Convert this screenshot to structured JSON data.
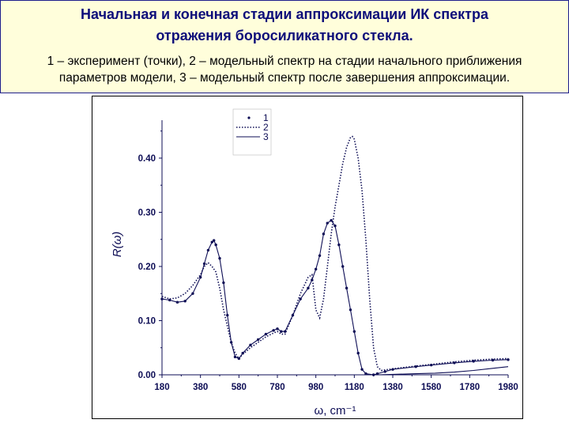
{
  "header": {
    "title_line1": "Начальная и конечная стадии аппроксимации ИК спектра",
    "title_line2": "отражения боросиликатного стекла.",
    "subtitle_line1": "1 – эксперимент (точки), 2 – модельный спектр на стадии начального приближения",
    "subtitle_line2": "параметров модели, 3 – модельный спектр после завершения аппроксимации."
  },
  "chart_data": {
    "type": "line",
    "xlabel": "ω, cm⁻¹",
    "ylabel": "R(ω)",
    "xlim": [
      180,
      1980
    ],
    "ylim": [
      0,
      0.47
    ],
    "x_ticks": [
      "180",
      "380",
      "580",
      "780",
      "980",
      "1180",
      "1380",
      "1580",
      "1780",
      "1980"
    ],
    "y_ticks": [
      "0.00",
      "0.10",
      "0.20",
      "0.30",
      "0.40"
    ],
    "legend_position": "top-left",
    "grid": false,
    "series": [
      {
        "name": "1",
        "style": "points",
        "color": "#0d0d55",
        "x": [
          180,
          220,
          260,
          300,
          340,
          380,
          400,
          420,
          440,
          450,
          460,
          480,
          500,
          520,
          540,
          560,
          580,
          600,
          640,
          680,
          720,
          760,
          780,
          800,
          820,
          860,
          900,
          940,
          960,
          980,
          1000,
          1020,
          1040,
          1060,
          1080,
          1100,
          1120,
          1140,
          1160,
          1180,
          1200,
          1220,
          1240,
          1280,
          1300,
          1340,
          1380,
          1500,
          1580,
          1700,
          1800,
          1900,
          1980
        ],
        "y": [
          0.14,
          0.138,
          0.134,
          0.136,
          0.15,
          0.18,
          0.205,
          0.23,
          0.245,
          0.248,
          0.24,
          0.215,
          0.17,
          0.11,
          0.06,
          0.033,
          0.03,
          0.04,
          0.055,
          0.065,
          0.075,
          0.082,
          0.085,
          0.08,
          0.08,
          0.11,
          0.14,
          0.16,
          0.175,
          0.195,
          0.22,
          0.26,
          0.28,
          0.285,
          0.275,
          0.24,
          0.2,
          0.16,
          0.12,
          0.08,
          0.04,
          0.01,
          0.002,
          0.0,
          0.002,
          0.006,
          0.01,
          0.015,
          0.018,
          0.022,
          0.025,
          0.027,
          0.028
        ]
      },
      {
        "name": "2",
        "style": "dotted",
        "color": "#0d0d55",
        "x": [
          180,
          220,
          260,
          300,
          340,
          380,
          400,
          420,
          440,
          460,
          480,
          500,
          520,
          540,
          560,
          580,
          600,
          640,
          680,
          720,
          760,
          780,
          800,
          820,
          860,
          900,
          940,
          960,
          980,
          1000,
          1020,
          1040,
          1060,
          1080,
          1100,
          1120,
          1140,
          1160,
          1170,
          1180,
          1200,
          1220,
          1240,
          1260,
          1280,
          1300,
          1320,
          1360,
          1400,
          1500,
          1600,
          1700,
          1800,
          1900,
          1980
        ],
        "y": [
          0.145,
          0.14,
          0.142,
          0.15,
          0.165,
          0.185,
          0.2,
          0.207,
          0.2,
          0.19,
          0.16,
          0.12,
          0.09,
          0.06,
          0.04,
          0.03,
          0.038,
          0.05,
          0.06,
          0.07,
          0.077,
          0.08,
          0.075,
          0.075,
          0.11,
          0.15,
          0.18,
          0.185,
          0.12,
          0.105,
          0.14,
          0.2,
          0.26,
          0.31,
          0.35,
          0.39,
          0.42,
          0.438,
          0.44,
          0.435,
          0.4,
          0.34,
          0.25,
          0.14,
          0.05,
          0.015,
          0.008,
          0.01,
          0.012,
          0.016,
          0.02,
          0.024,
          0.027,
          0.029,
          0.03
        ]
      },
      {
        "name": "3",
        "style": "solid",
        "color": "#0d0d55",
        "x": [
          1180,
          1300,
          1400,
          1500,
          1600,
          1700,
          1800,
          1900,
          1980
        ],
        "y": [
          0.0,
          0.0,
          0.001,
          0.002,
          0.003,
          0.005,
          0.008,
          0.012,
          0.015
        ]
      }
    ]
  }
}
